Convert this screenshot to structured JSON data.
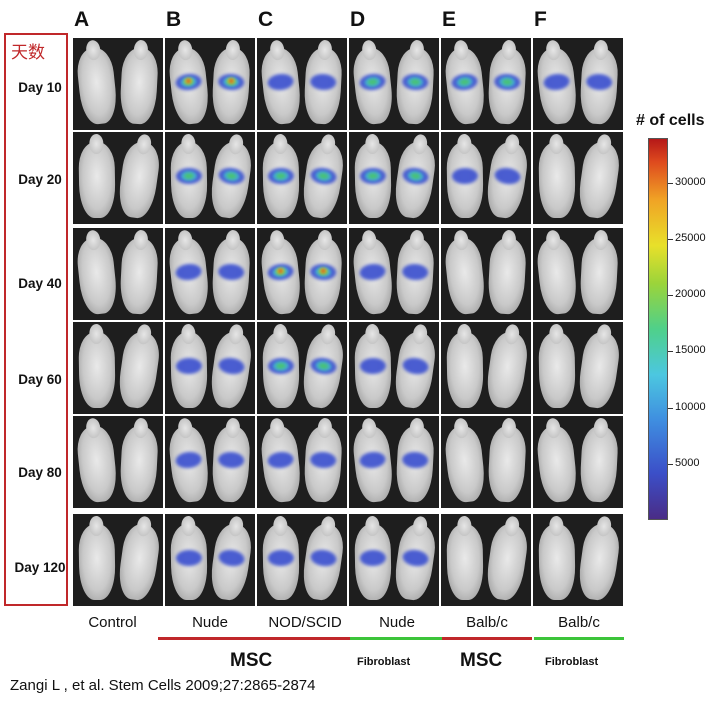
{
  "days_title": "天数",
  "columns": [
    {
      "letter": "A",
      "group": "Control"
    },
    {
      "letter": "B",
      "group": "Nude"
    },
    {
      "letter": "C",
      "group": "NOD/SCID"
    },
    {
      "letter": "D",
      "group": "Nude"
    },
    {
      "letter": "E",
      "group": "Balb/c"
    },
    {
      "letter": "F",
      "group": "Balb/c"
    }
  ],
  "days": [
    "Day 10",
    "Day 20",
    "Day 40",
    "Day 60",
    "Day 80",
    "Day 120"
  ],
  "materials": {
    "msc": "MSC",
    "fibroblast": "Fibroblast"
  },
  "colorbar": {
    "title": "# of cells",
    "ticks": [
      "5000",
      "10000",
      "15000",
      "20000",
      "25000",
      "30000"
    ]
  },
  "citation": "Zangi L , et al. Stem Cells 2009;27:2865-2874",
  "colors": {
    "msc_line": "#c0282a",
    "fibroblast_line": "#3cc43a",
    "highlight_box": "#c0282a"
  }
}
